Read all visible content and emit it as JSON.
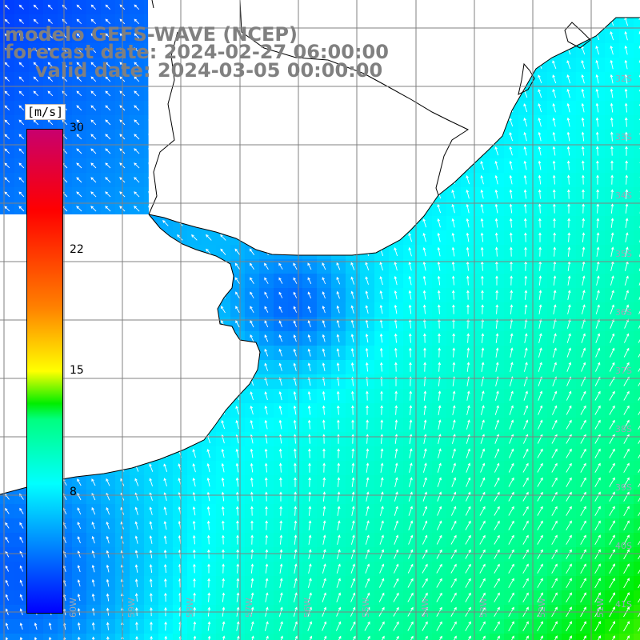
{
  "title": {
    "line1": "modelo GEFS-WAVE (NCEP)",
    "line2": "forecast date: 2024-02-27 06:00:00",
    "line3": "valid date: 2024-03-05 00:00:00"
  },
  "colors": {
    "title_text": "#808080",
    "land": "#ffffff",
    "grid": "#808080",
    "coastline": "#000000",
    "arrow": "#ffffff"
  },
  "legend": {
    "unit": "[m/s]",
    "ticks": [
      "30",
      "22",
      "15",
      "8"
    ],
    "tick_values": [
      30,
      22,
      15,
      8
    ],
    "range": [
      0,
      30
    ],
    "stops": [
      {
        "value": 0,
        "color": "#0000ff"
      },
      {
        "value": 4,
        "color": "#0080ff"
      },
      {
        "value": 8,
        "color": "#00ffff"
      },
      {
        "value": 12,
        "color": "#00ff80"
      },
      {
        "value": 13,
        "color": "#00ee00"
      },
      {
        "value": 15,
        "color": "#ffff00"
      },
      {
        "value": 19,
        "color": "#ff8000"
      },
      {
        "value": 22,
        "color": "#ff4000"
      },
      {
        "value": 25,
        "color": "#ff0000"
      },
      {
        "value": 30,
        "color": "#c8006e"
      }
    ]
  },
  "map": {
    "field": "wind speed",
    "latitude_labels": [
      "32S",
      "33S",
      "34S",
      "35S",
      "36S",
      "37S",
      "38S",
      "39S",
      "40S",
      "41S"
    ],
    "longitude_labels": [
      "60W",
      "59W",
      "58W",
      "57W",
      "56W",
      "55W",
      "54W",
      "53W",
      "52W",
      "51W"
    ]
  }
}
